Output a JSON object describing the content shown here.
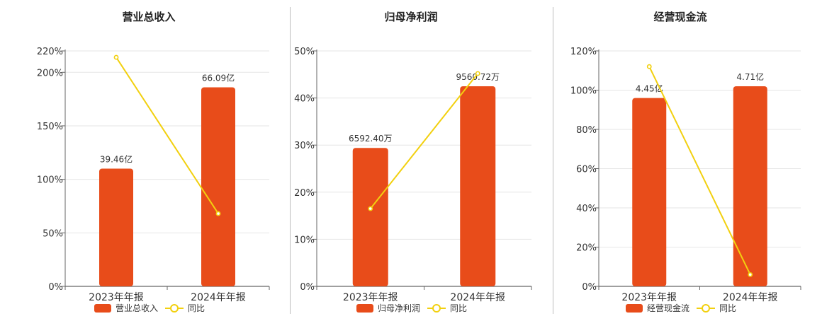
{
  "chart_data": [
    {
      "type": "bar",
      "title": "营业总收入",
      "categories": [
        "2023年年报",
        "2024年年报"
      ],
      "series": [
        {
          "name": "营业总收入",
          "kind": "bar",
          "values": [
            110,
            186
          ],
          "labels": [
            "39.46亿",
            "66.09亿"
          ]
        },
        {
          "name": "同比",
          "kind": "line",
          "values": [
            214,
            68
          ]
        }
      ],
      "ylim": [
        0,
        220
      ],
      "yticks": [
        0,
        50,
        100,
        150,
        200,
        220
      ],
      "ytick_labels": [
        "0%",
        "50%",
        "100%",
        "150%",
        "200%",
        "220%"
      ],
      "grid": true,
      "legend": "bottom"
    },
    {
      "type": "bar",
      "title": "归母净利润",
      "categories": [
        "2023年年报",
        "2024年年报"
      ],
      "series": [
        {
          "name": "归母净利润",
          "kind": "bar",
          "values": [
            29.4,
            42.5
          ],
          "labels": [
            "6592.40万",
            "9560.72万"
          ]
        },
        {
          "name": "同比",
          "kind": "line",
          "values": [
            16.5,
            45.2
          ]
        }
      ],
      "ylim": [
        0,
        50
      ],
      "yticks": [
        0,
        10,
        20,
        30,
        40,
        50
      ],
      "ytick_labels": [
        "0%",
        "10%",
        "20%",
        "30%",
        "40%",
        "50%"
      ],
      "grid": true,
      "legend": "bottom"
    },
    {
      "type": "bar",
      "title": "经营现金流",
      "categories": [
        "2023年年报",
        "2024年年报"
      ],
      "series": [
        {
          "name": "经营现金流",
          "kind": "bar",
          "values": [
            96,
            102
          ],
          "labels": [
            "4.45亿",
            "4.71亿"
          ]
        },
        {
          "name": "同比",
          "kind": "line",
          "values": [
            112,
            6
          ]
        }
      ],
      "ylim": [
        0,
        120
      ],
      "yticks": [
        0,
        20,
        40,
        60,
        80,
        100,
        120
      ],
      "ytick_labels": [
        "0%",
        "20%",
        "40%",
        "60%",
        "80%",
        "100%",
        "120%"
      ],
      "grid": true,
      "legend": "bottom"
    }
  ],
  "colors": {
    "bar": "#e84c1a",
    "line": "#f2d00f",
    "grid": "#e6e6e6",
    "axis": "#666666",
    "text": "#333333"
  }
}
